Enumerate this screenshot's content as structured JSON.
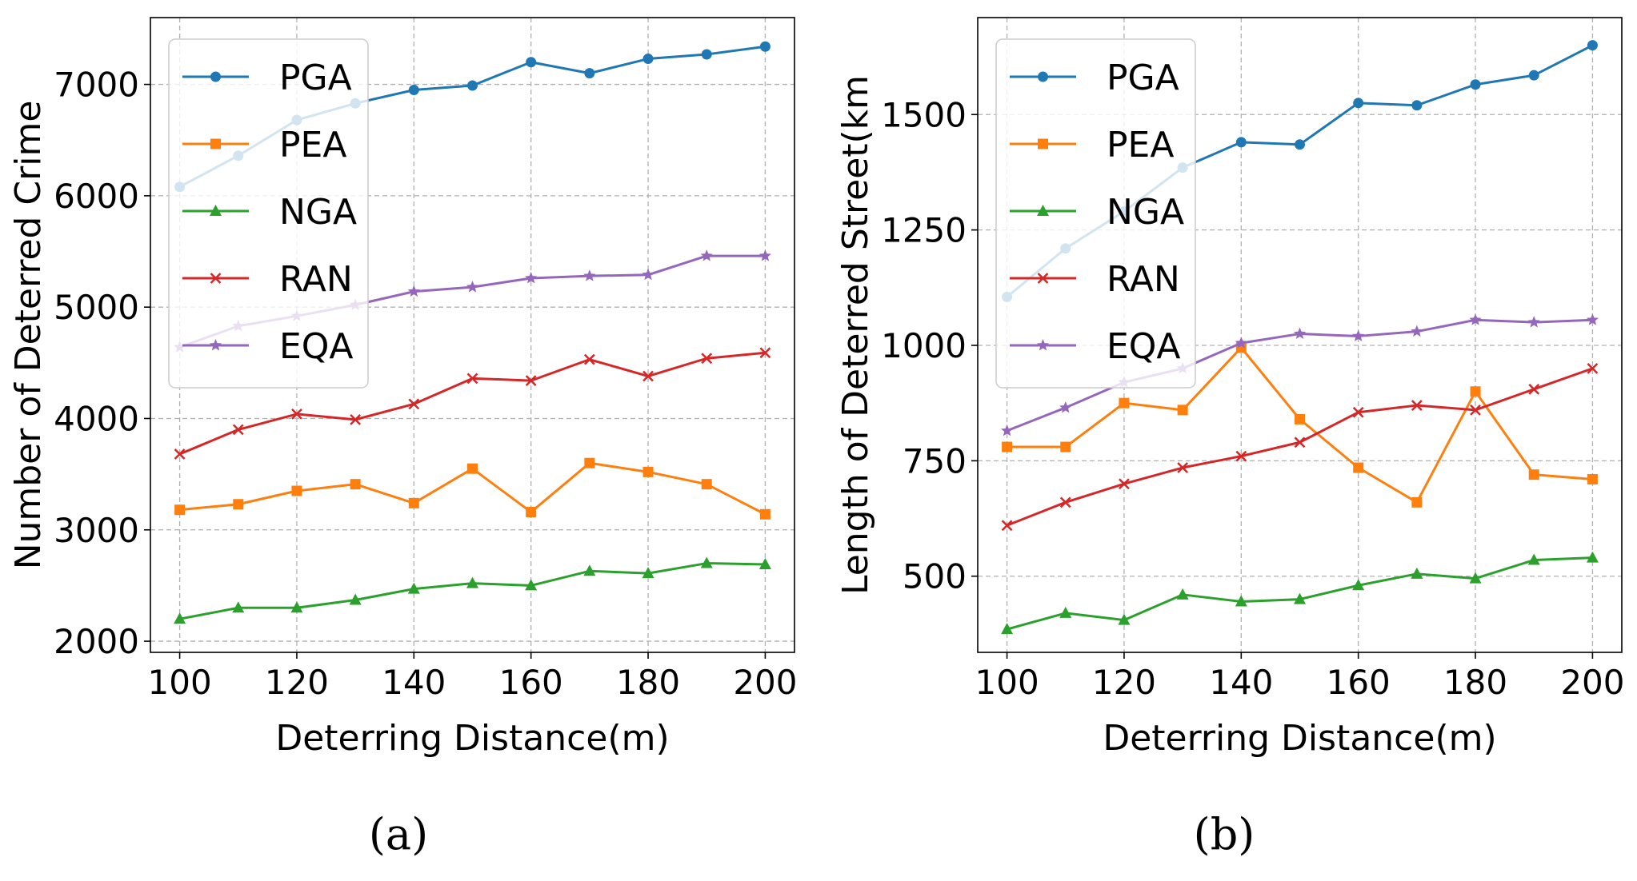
{
  "figure_labels": [
    "(a)",
    "(b)"
  ],
  "chart_data": [
    {
      "type": "line",
      "panel": "(a)",
      "title": "",
      "xlabel": "Deterring Distance(m)",
      "ylabel": "Number of Deterred Crime",
      "x": [
        100,
        110,
        120,
        130,
        140,
        150,
        160,
        170,
        180,
        190,
        200
      ],
      "xlim": [
        95,
        205
      ],
      "ylim": [
        1900,
        7600
      ],
      "xticks": [
        100,
        120,
        140,
        160,
        180,
        200
      ],
      "yticks": [
        2000,
        3000,
        4000,
        5000,
        6000,
        7000
      ],
      "grid": true,
      "legend": "top-left",
      "series": [
        {
          "name": "PGA",
          "color": "#1f77b4",
          "marker": "circle",
          "values": [
            6080,
            6360,
            6680,
            6830,
            6950,
            6990,
            7200,
            7100,
            7230,
            7270,
            7340
          ]
        },
        {
          "name": "PEA",
          "color": "#ff7f0e",
          "marker": "square",
          "values": [
            3180,
            3230,
            3350,
            3410,
            3240,
            3550,
            3160,
            3600,
            3520,
            3410,
            3140
          ]
        },
        {
          "name": "NGA",
          "color": "#2ca02c",
          "marker": "triangle",
          "values": [
            2200,
            2300,
            2300,
            2370,
            2470,
            2520,
            2500,
            2630,
            2610,
            2700,
            2690
          ]
        },
        {
          "name": "RAN",
          "color": "#d62728",
          "marker": "x",
          "values": [
            3680,
            3900,
            4040,
            3990,
            4130,
            4360,
            4340,
            4530,
            4380,
            4540,
            4590
          ]
        },
        {
          "name": "EQA",
          "color": "#9467bd",
          "marker": "star",
          "values": [
            4640,
            4830,
            4920,
            5020,
            5140,
            5180,
            5260,
            5280,
            5290,
            5460,
            5460
          ]
        }
      ]
    },
    {
      "type": "line",
      "panel": "(b)",
      "title": "",
      "xlabel": "Deterring Distance(m)",
      "ylabel": "Length of Deterred Street(km",
      "x": [
        100,
        110,
        120,
        130,
        140,
        150,
        160,
        170,
        180,
        190,
        200
      ],
      "xlim": [
        95,
        205
      ],
      "ylim": [
        335,
        1710
      ],
      "xticks": [
        100,
        120,
        140,
        160,
        180,
        200
      ],
      "yticks": [
        500,
        750,
        1000,
        1250,
        1500
      ],
      "grid": true,
      "legend": "top-left",
      "series": [
        {
          "name": "PGA",
          "color": "#1f77b4",
          "marker": "circle",
          "values": [
            1105,
            1210,
            1290,
            1385,
            1440,
            1435,
            1525,
            1520,
            1565,
            1585,
            1650
          ]
        },
        {
          "name": "PEA",
          "color": "#ff7f0e",
          "marker": "square",
          "values": [
            780,
            780,
            875,
            860,
            995,
            840,
            735,
            660,
            900,
            720,
            710
          ]
        },
        {
          "name": "NGA",
          "color": "#2ca02c",
          "marker": "triangle",
          "values": [
            385,
            420,
            405,
            460,
            445,
            450,
            480,
            505,
            495,
            535,
            540
          ]
        },
        {
          "name": "RAN",
          "color": "#d62728",
          "marker": "x",
          "values": [
            610,
            660,
            700,
            735,
            760,
            790,
            855,
            870,
            860,
            905,
            950
          ]
        },
        {
          "name": "EQA",
          "color": "#9467bd",
          "marker": "star",
          "values": [
            815,
            865,
            920,
            950,
            1005,
            1025,
            1020,
            1030,
            1055,
            1050,
            1055
          ]
        }
      ]
    }
  ]
}
